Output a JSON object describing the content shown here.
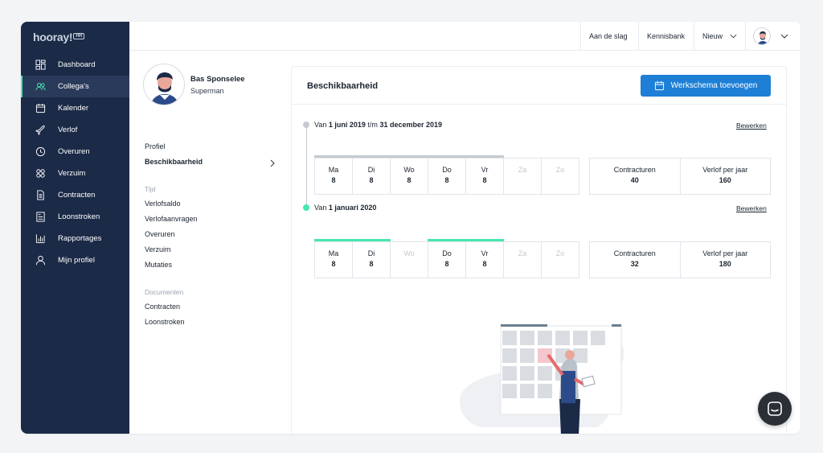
{
  "brand": {
    "logo_text": "hooray!",
    "logo_badge": "HR"
  },
  "sidebar": {
    "items": [
      {
        "label": "Dashboard",
        "icon": "dashboard-icon"
      },
      {
        "label": "Collega's",
        "icon": "people-icon",
        "active": true
      },
      {
        "label": "Kalender",
        "icon": "calendar-icon"
      },
      {
        "label": "Verlof",
        "icon": "plane-icon"
      },
      {
        "label": "Overuren",
        "icon": "clock-icon"
      },
      {
        "label": "Verzuim",
        "icon": "bandage-icon"
      },
      {
        "label": "Contracten",
        "icon": "document-icon"
      },
      {
        "label": "Loonstroken",
        "icon": "payslip-icon"
      },
      {
        "label": "Rapportages",
        "icon": "bar-chart-icon"
      },
      {
        "label": "Mijn profiel",
        "icon": "user-icon"
      }
    ]
  },
  "topbar": {
    "get_started": "Aan de slag",
    "knowledge_base": "Kennisbank",
    "new_label": "Nieuw"
  },
  "profile": {
    "name": "Bas Sponselee",
    "role": "Superman",
    "menu": {
      "profiel": "Profiel",
      "beschikbaarheid": "Beschikbaarheid",
      "tijd_header": "Tijd",
      "tijd_items": [
        "Verlofsaldo",
        "Verlofaanvragen",
        "Overuren",
        "Verzuim",
        "Mutaties"
      ],
      "documenten_header": "Documenten",
      "documenten_items": [
        "Contracten",
        "Loonstroken"
      ]
    }
  },
  "main": {
    "title": "Beschikbaarheid",
    "add_button": "Werkschema toevoegen",
    "edit_label": "Bewerken",
    "periods": [
      {
        "prefix": "Van",
        "start": "1 juni 2019",
        "sep": "t/m",
        "end": "31 december 2019",
        "days": [
          {
            "name": "Ma",
            "hours": "8"
          },
          {
            "name": "Di",
            "hours": "8"
          },
          {
            "name": "Wo",
            "hours": "8"
          },
          {
            "name": "Do",
            "hours": "8"
          },
          {
            "name": "Vr",
            "hours": "8"
          },
          {
            "name": "Za",
            "hours": ""
          },
          {
            "name": "Zo",
            "hours": ""
          }
        ],
        "contract_label": "Contracturen",
        "contract_value": "40",
        "leave_label": "Verlof per jaar",
        "leave_value": "160"
      },
      {
        "prefix": "Van",
        "start": "1 januari 2020",
        "days": [
          {
            "name": "Ma",
            "hours": "8"
          },
          {
            "name": "Di",
            "hours": "8"
          },
          {
            "name": "Wo",
            "hours": ""
          },
          {
            "name": "Do",
            "hours": "8"
          },
          {
            "name": "Vr",
            "hours": "8"
          },
          {
            "name": "Za",
            "hours": ""
          },
          {
            "name": "Zo",
            "hours": ""
          }
        ],
        "contract_label": "Contracturen",
        "contract_value": "32",
        "leave_label": "Verlof per jaar",
        "leave_value": "180"
      }
    ]
  },
  "colors": {
    "sidebar_bg": "#1b2a47",
    "accent_green": "#47e6b1",
    "past_gray": "#c5cad2",
    "primary_blue": "#1e7fd6"
  }
}
